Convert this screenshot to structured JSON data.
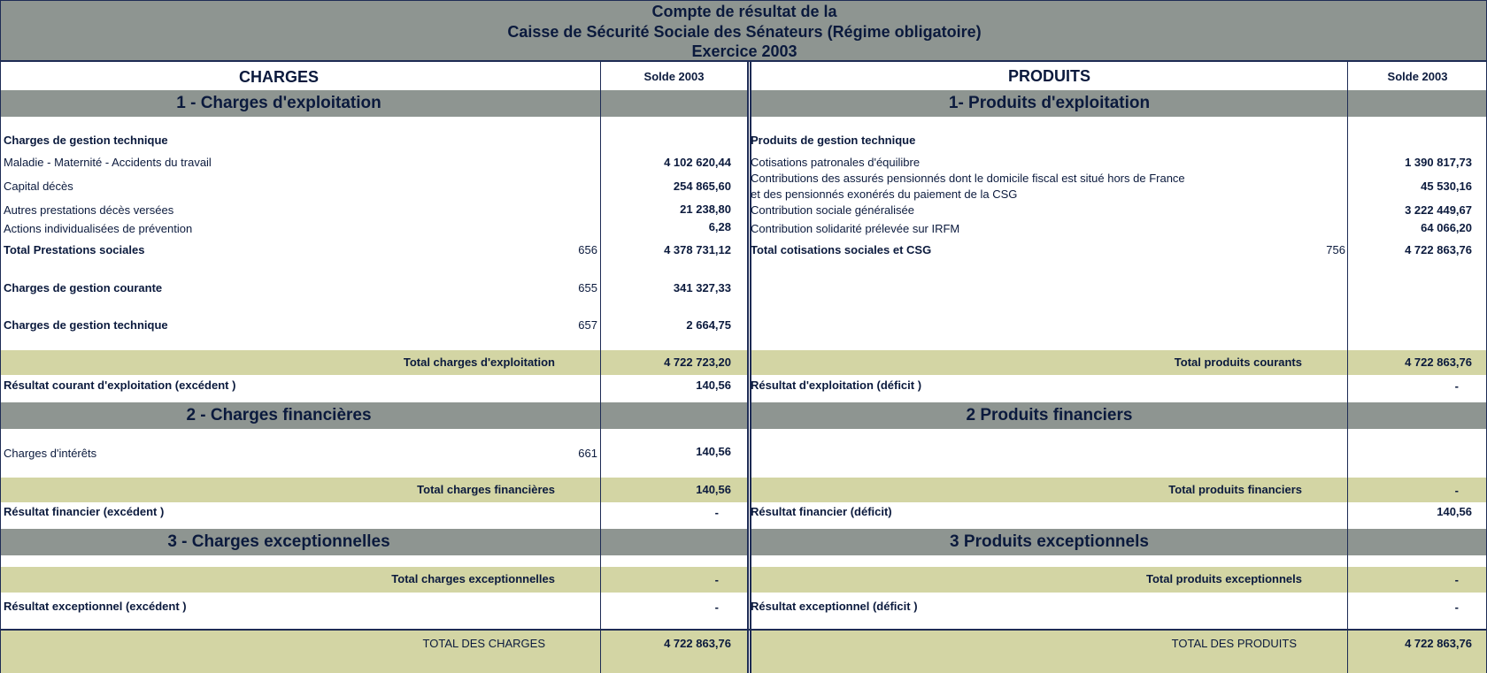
{
  "title": {
    "line1": "Compte de résultat de la",
    "line2": "Caisse de Sécurité Sociale des Sénateurs (Régime obligatoire)",
    "line3": "Exercice 2003"
  },
  "charges": {
    "header": "CHARGES",
    "solde_label": "Solde 2003",
    "section1": "1 - Charges d'exploitation",
    "gestion_technique_heading": "Charges de gestion technique",
    "maladie": {
      "label": "Maladie - Maternité - Accidents du travail",
      "value": "4 102 620,44"
    },
    "capital_deces": {
      "label": "Capital décès",
      "value": "254 865,60"
    },
    "autres_prestations": {
      "label": "Autres prestations décès versées",
      "value": "21 238,80"
    },
    "actions_prevention": {
      "label": "Actions individualisées de prévention",
      "value": "6,28"
    },
    "total_prestations": {
      "label": "Total Prestations sociales",
      "code": "656",
      "value": "4 378 731,12"
    },
    "gestion_courante": {
      "label": "Charges de gestion courante",
      "code": "655",
      "value": "341 327,33"
    },
    "gestion_technique": {
      "label": "Charges de gestion technique",
      "code": "657",
      "value": "2 664,75"
    },
    "total_exploitation": {
      "label": "Total charges d'exploitation",
      "value": "4 722 723,20"
    },
    "resultat_exploitation": {
      "label": "Résultat courant d'exploitation (excédent )",
      "value": "140,56"
    },
    "section2": "2 - Charges financières",
    "interets": {
      "label": "Charges d'intérêts",
      "code": "661",
      "value": "140,56"
    },
    "total_financieres": {
      "label": "Total charges financières",
      "value": "140,56"
    },
    "resultat_financier": {
      "label": "Résultat financier (excédent )",
      "value": "-"
    },
    "section3": "3 - Charges exceptionnelles",
    "total_exceptionnelles": {
      "label": "Total charges exceptionnelles",
      "value": "-"
    },
    "resultat_exceptionnel": {
      "label": "Résultat exceptionnel (excédent )",
      "value": "-"
    },
    "total": {
      "label": "TOTAL DES CHARGES",
      "value": "4 722 863,76"
    }
  },
  "produits": {
    "header": "PRODUITS",
    "solde_label": "Solde 2003",
    "section1": "1- Produits d'exploitation",
    "gestion_technique_heading": "Produits de gestion technique",
    "cotisations_patronales": {
      "label": "Cotisations patronales d'équilibre",
      "value": "1 390 817,73"
    },
    "contributions_line1": "Contributions des assurés pensionnés dont le domicile fiscal est situé hors de France",
    "contributions_line2": "et des pensionnés exonérés du paiement de la CSG",
    "contributions_value": "45 530,16",
    "csg": {
      "label": "Contribution sociale généralisée",
      "value": "3 222 449,67"
    },
    "irfm": {
      "label": "Contribution solidarité prélevée sur IRFM",
      "value": "64 066,20"
    },
    "total_cotisations": {
      "label": "Total cotisations sociales et CSG",
      "code": "756",
      "value": "4 722 863,76"
    },
    "total_courants": {
      "label": "Total produits courants",
      "value": "4 722 863,76"
    },
    "resultat_exploitation": {
      "label": "Résultat d'exploitation (déficit )",
      "value": "-"
    },
    "section2": "2 Produits financiers",
    "total_financiers": {
      "label": "Total produits financiers",
      "value": "-"
    },
    "resultat_financier": {
      "label": "Résultat financier (déficit)",
      "value": "140,56"
    },
    "section3": "3 Produits exceptionnels",
    "total_exceptionnels": {
      "label": "Total produits exceptionnels",
      "value": "-"
    },
    "resultat_exceptionnel": {
      "label": "Résultat exceptionnel (déficit )",
      "value": "-"
    },
    "total": {
      "label": "TOTAL DES PRODUITS",
      "value": "4 722 863,76"
    }
  }
}
